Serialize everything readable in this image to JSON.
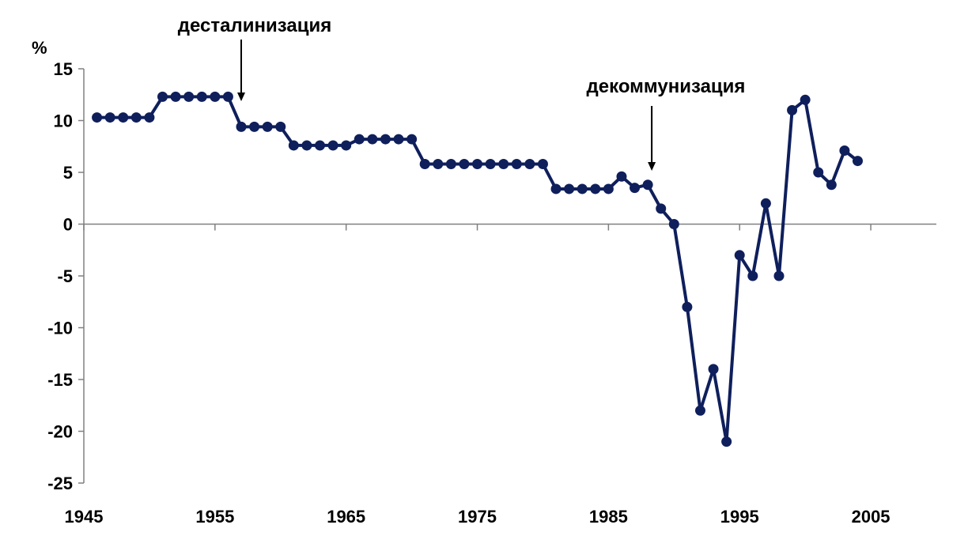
{
  "chart_data": {
    "type": "line",
    "ylabel": "%",
    "xlim": [
      1945,
      2010
    ],
    "ylim": [
      -25,
      15
    ],
    "x_ticks": [
      1945,
      1955,
      1965,
      1975,
      1985,
      1995,
      2005
    ],
    "y_ticks": [
      15,
      10,
      5,
      0,
      -5,
      -10,
      -15,
      -20,
      -25
    ],
    "grid": false,
    "colors": {
      "series": "#0f1f5c",
      "axis": "#808080"
    },
    "series": [
      {
        "x": [
          1946,
          1947,
          1948,
          1949,
          1950,
          1951,
          1952,
          1953,
          1954,
          1955,
          1956,
          1957,
          1958,
          1959,
          1960,
          1961,
          1962,
          1963,
          1964,
          1965,
          1966,
          1967,
          1968,
          1969,
          1970,
          1971,
          1972,
          1973,
          1974,
          1975,
          1976,
          1977,
          1978,
          1979,
          1980,
          1981,
          1982,
          1983,
          1984,
          1985,
          1986,
          1987,
          1988,
          1989,
          1990,
          1991,
          1992,
          1993,
          1994,
          1995,
          1996,
          1997,
          1998,
          1999,
          2000,
          2001,
          2002,
          2003,
          2004
        ],
        "values": [
          10.3,
          10.3,
          10.3,
          10.3,
          10.3,
          12.3,
          12.3,
          12.3,
          12.3,
          12.3,
          12.3,
          9.4,
          9.4,
          9.4,
          9.4,
          7.6,
          7.6,
          7.6,
          7.6,
          7.6,
          8.2,
          8.2,
          8.2,
          8.2,
          8.2,
          5.8,
          5.8,
          5.8,
          5.8,
          5.8,
          5.8,
          5.8,
          5.8,
          5.8,
          5.8,
          3.4,
          3.4,
          3.4,
          3.4,
          3.4,
          4.6,
          3.5,
          3.8,
          1.5,
          0.0,
          -8.0,
          -18.0,
          -14.0,
          -21.0,
          -3.0,
          -5.0,
          2.0,
          -5.0,
          11.0,
          12.0,
          5.0,
          3.8,
          7.1,
          6.1
        ]
      }
    ],
    "annotations": [
      {
        "text": "десталинизация",
        "x": 1957
      },
      {
        "text": "декоммунизация",
        "x": 1988.3
      }
    ]
  }
}
